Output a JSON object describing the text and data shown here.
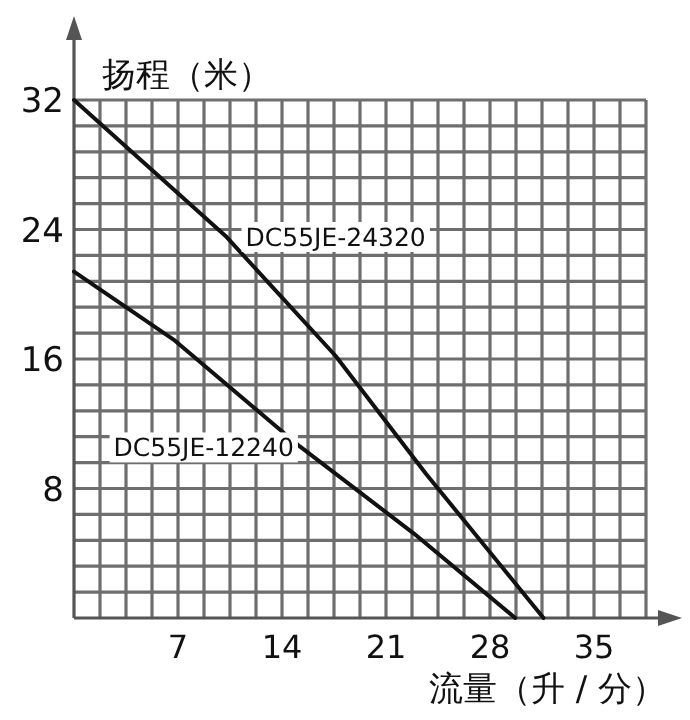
{
  "chart_data": {
    "type": "line",
    "xlabel": "流量（升 / 分）",
    "ylabel": "扬程（米）",
    "xlim": [
      0,
      38.5
    ],
    "ylim": [
      0,
      32
    ],
    "xticks": [
      {
        "value": 1.75,
        "label": null
      },
      {
        "value": 3.5,
        "label": null
      },
      {
        "value": 5.25,
        "label": null
      },
      7,
      {
        "value": 8.75,
        "label": null
      },
      {
        "value": 10.5,
        "label": null
      },
      {
        "value": 12.25,
        "label": null
      },
      14,
      {
        "value": 15.75,
        "label": null
      },
      {
        "value": 17.5,
        "label": null
      },
      {
        "value": 19.25,
        "label": null
      },
      21,
      {
        "value": 22.75,
        "label": null
      },
      {
        "value": 24.5,
        "label": null
      },
      {
        "value": 26.25,
        "label": null
      },
      28,
      {
        "value": 29.75,
        "label": null
      },
      {
        "value": 31.5,
        "label": null
      },
      {
        "value": 33.25,
        "label": null
      },
      35,
      {
        "value": 36.75,
        "label": null
      },
      {
        "value": 38.5,
        "label": null
      }
    ],
    "yticks": [
      {
        "value": 1.6,
        "label": null
      },
      {
        "value": 3.2,
        "label": null
      },
      {
        "value": 4.8,
        "label": null
      },
      {
        "value": 6.4,
        "label": null
      },
      8,
      {
        "value": 9.6,
        "label": null
      },
      {
        "value": 11.2,
        "label": null
      },
      {
        "value": 12.8,
        "label": null
      },
      {
        "value": 14.4,
        "label": null
      },
      16,
      {
        "value": 17.6,
        "label": null
      },
      {
        "value": 19.2,
        "label": null
      },
      {
        "value": 20.8,
        "label": null
      },
      {
        "value": 22.4,
        "label": null
      },
      24,
      {
        "value": 25.6,
        "label": null
      },
      {
        "value": 27.2,
        "label": null
      },
      {
        "value": 28.8,
        "label": null
      },
      {
        "value": 30.4,
        "label": null
      },
      32
    ],
    "grid": true,
    "marker": "none",
    "line_style": "solid",
    "series": [
      {
        "name": "DC55JE-24320",
        "color": "#111111",
        "x": [
          0,
          10.2,
          17.6,
          23.7,
          31.6
        ],
        "values": [
          32,
          23.6,
          16.2,
          8.9,
          0
        ]
      },
      {
        "name": "DC55JE-12240",
        "color": "#111111",
        "x": [
          0,
          6.7,
          15.2,
          22.9,
          29.7
        ],
        "values": [
          21.4,
          17.2,
          10.6,
          5.2,
          0
        ]
      }
    ]
  }
}
